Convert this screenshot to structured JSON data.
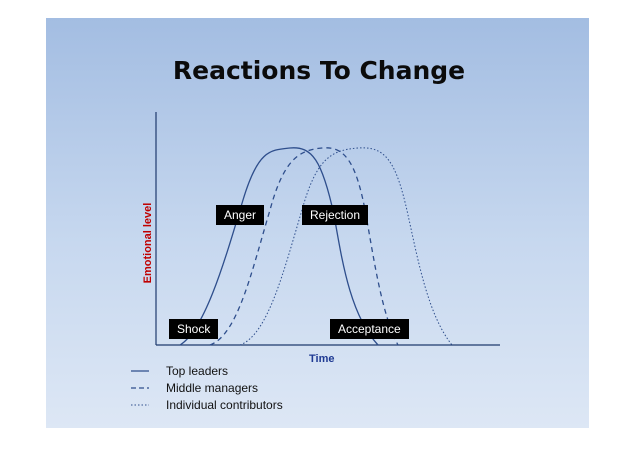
{
  "title": "Reactions To Change",
  "axes": {
    "ylabel": "Emotional level",
    "xlabel": "Time"
  },
  "phases": {
    "shock": "Shock",
    "anger": "Anger",
    "rejection": "Rejection",
    "acceptance": "Acceptance"
  },
  "legend": [
    {
      "name": "Top leaders",
      "style": "solid"
    },
    {
      "name": "Middle managers",
      "style": "dashed"
    },
    {
      "name": "Individual contributors",
      "style": "dotted"
    }
  ],
  "colors": {
    "curve": "#2e4e8c",
    "axis": "#1f3a6e",
    "ylabel": "#c00000",
    "xlabel": "#1f3a93"
  }
}
